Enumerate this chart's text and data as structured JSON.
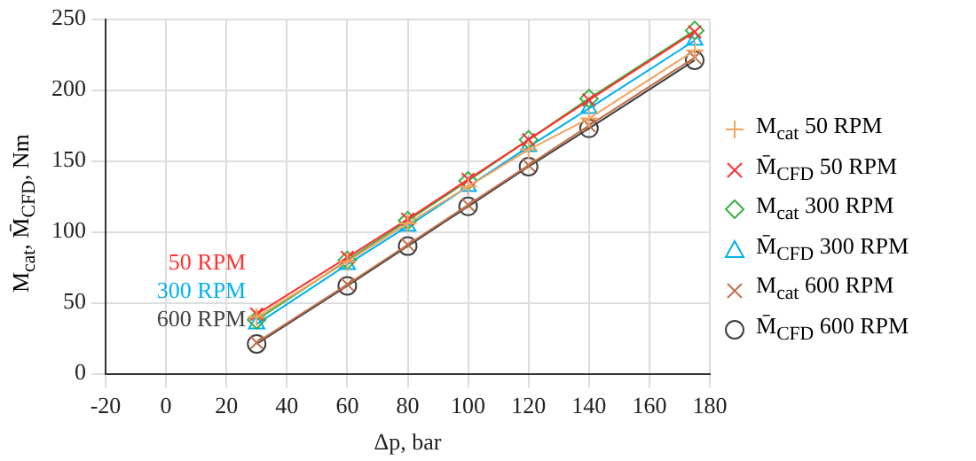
{
  "chart_data": {
    "type": "line",
    "xlabel": "Δp, bar",
    "ylabel": "M$_{cat}$, M̄$_{CFD}$, Nm",
    "xlim": [
      -20,
      180
    ],
    "xticks": [
      -20,
      0,
      20,
      40,
      60,
      80,
      100,
      120,
      140,
      160,
      180
    ],
    "ylim": [
      0,
      250
    ],
    "yticks": [
      0,
      50,
      100,
      150,
      200,
      250
    ],
    "grid": true,
    "legend": "right",
    "x": [
      30,
      60,
      80,
      100,
      120,
      140,
      175
    ],
    "series": [
      {
        "name": "M$_{cat}$ 50 RPM",
        "color": "#f4a460",
        "marker": "plus",
        "values": [
          40,
          79,
          106,
          132,
          158,
          180,
          228
        ]
      },
      {
        "name": "M̄$_{CFD}$ 50 RPM",
        "color": "#ff3030",
        "marker": "cross",
        "values": [
          42,
          82,
          109,
          137,
          165,
          193,
          241
        ]
      },
      {
        "name": "M$_{cat}$ 300 RPM",
        "color": "#3cb043",
        "marker": "diamond",
        "values": [
          38,
          80,
          108,
          136,
          165,
          194,
          242
        ]
      },
      {
        "name": "M̄$_{CFD}$ 300 RPM",
        "color": "#00b0f0",
        "marker": "triangle",
        "values": [
          35,
          77,
          104,
          132,
          160,
          187,
          235
        ]
      },
      {
        "name": "M$_{cat}$ 600 RPM",
        "color": "#c0704a",
        "marker": "cross",
        "values": [
          22,
          63,
          91,
          119,
          147,
          175,
          223
        ]
      },
      {
        "name": "M̄$_{CFD}$ 600 RPM",
        "color": "#404040",
        "marker": "circle",
        "values": [
          21,
          62,
          90,
          118,
          146,
          173,
          221
        ]
      }
    ],
    "annotations": [
      "50 RPM",
      "300 RPM",
      "600 RPM"
    ]
  }
}
